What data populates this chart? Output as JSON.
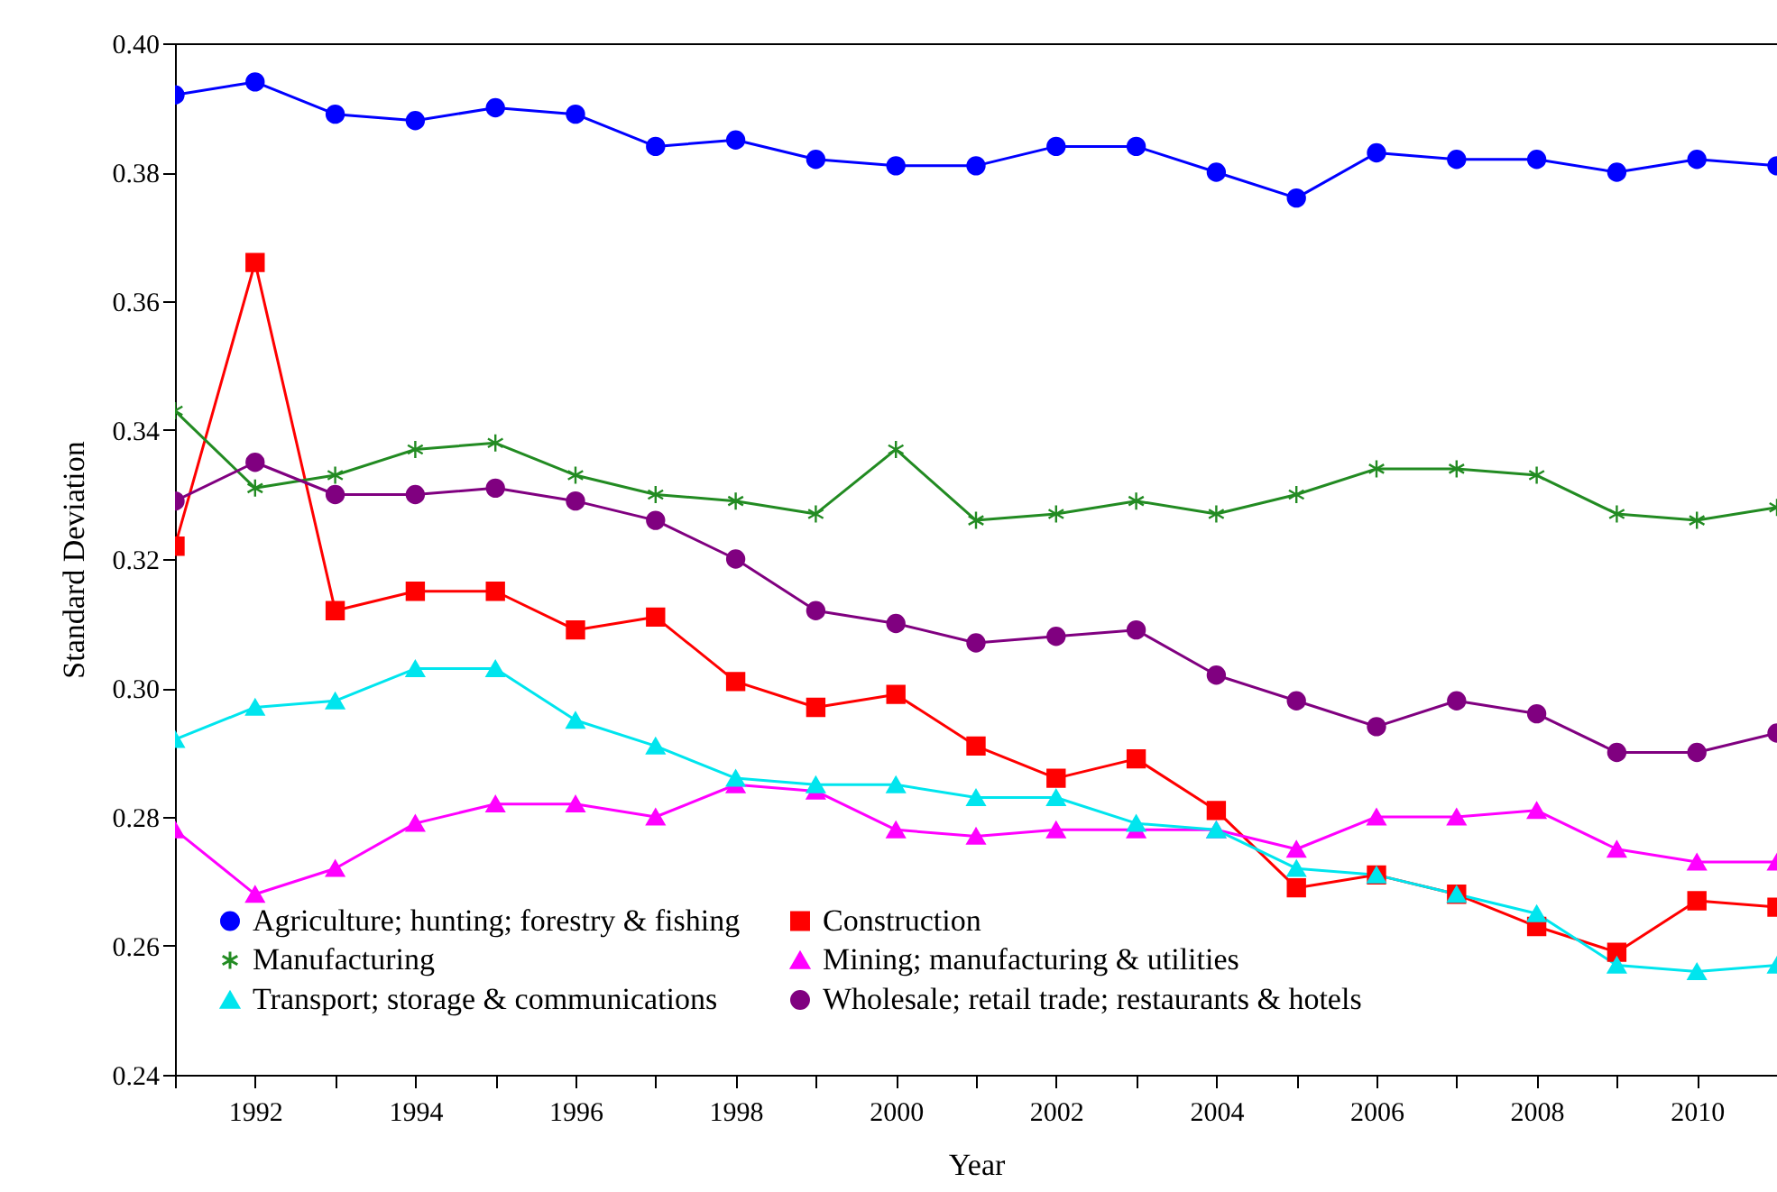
{
  "chart_data": {
    "type": "line",
    "xlabel": "Year",
    "ylabel": "Standard Deviation",
    "x": [
      1991,
      1992,
      1993,
      1994,
      1995,
      1996,
      1997,
      1998,
      1999,
      2000,
      2001,
      2002,
      2003,
      2004,
      2005,
      2006,
      2007,
      2008,
      2009,
      2010,
      2011
    ],
    "series": [
      {
        "name": "Agriculture; hunting; forestry & fishing",
        "color": "#0000ff",
        "marker": "circle",
        "values": [
          0.392,
          0.394,
          0.389,
          0.388,
          0.39,
          0.389,
          0.384,
          0.385,
          0.382,
          0.381,
          0.381,
          0.384,
          0.384,
          0.38,
          0.376,
          0.383,
          0.382,
          0.382,
          0.38,
          0.382,
          0.381
        ]
      },
      {
        "name": "Construction",
        "color": "#ff0000",
        "marker": "square",
        "values": [
          0.322,
          0.366,
          0.312,
          0.315,
          0.315,
          0.309,
          0.311,
          0.301,
          0.297,
          0.299,
          0.291,
          0.286,
          0.289,
          0.281,
          0.269,
          0.271,
          0.268,
          0.263,
          0.259,
          0.267,
          0.266
        ]
      },
      {
        "name": "Manufacturing",
        "color": "#228b22",
        "marker": "cross",
        "values": [
          0.343,
          0.331,
          0.333,
          0.337,
          0.338,
          0.333,
          0.33,
          0.329,
          0.327,
          0.337,
          0.326,
          0.327,
          0.329,
          0.327,
          0.33,
          0.334,
          0.334,
          0.333,
          0.327,
          0.326,
          0.328
        ]
      },
      {
        "name": "Mining; manufacturing & utilities",
        "color": "#ff00ff",
        "marker": "triangle",
        "values": [
          0.278,
          0.268,
          0.272,
          0.279,
          0.282,
          0.282,
          0.28,
          0.285,
          0.284,
          0.278,
          0.277,
          0.278,
          0.278,
          0.278,
          0.275,
          0.28,
          0.28,
          0.281,
          0.275,
          0.273,
          0.273
        ]
      },
      {
        "name": "Transport; storage & communications",
        "color": "#00e5ee",
        "marker": "triangle",
        "values": [
          0.292,
          0.297,
          0.298,
          0.303,
          0.303,
          0.295,
          0.291,
          0.286,
          0.285,
          0.285,
          0.283,
          0.283,
          0.279,
          0.278,
          0.272,
          0.271,
          0.268,
          0.265,
          0.257,
          0.256,
          0.257
        ]
      },
      {
        "name": "Wholesale; retail trade; restaurants & hotels",
        "color": "#800080",
        "marker": "circle",
        "values": [
          0.329,
          0.335,
          0.33,
          0.33,
          0.331,
          0.329,
          0.326,
          0.32,
          0.312,
          0.31,
          0.307,
          0.308,
          0.309,
          0.302,
          0.298,
          0.294,
          0.298,
          0.296,
          0.29,
          0.29,
          0.293
        ]
      }
    ],
    "xlim": [
      1991,
      2011
    ],
    "xticks": [
      {
        "value": 1991,
        "label": null
      },
      1992,
      {
        "value": 1993,
        "label": null
      },
      1994,
      {
        "value": 1995,
        "label": null
      },
      1996,
      {
        "value": 1997,
        "label": null
      },
      1998,
      {
        "value": 1999,
        "label": null
      },
      2000,
      {
        "value": 2001,
        "label": null
      },
      2002,
      {
        "value": 2003,
        "label": null
      },
      2004,
      {
        "value": 2005,
        "label": null
      },
      2006,
      {
        "value": 2007,
        "label": null
      },
      2008,
      {
        "value": 2009,
        "label": null
      },
      2010,
      {
        "value": 2011,
        "label": null
      }
    ],
    "ylim": [
      0.24,
      0.4
    ],
    "yticks": [
      0.24,
      0.26,
      0.28,
      {
        "value": 0.3,
        "label": "0.30"
      },
      0.32,
      0.34,
      0.36,
      0.38,
      {
        "value": 0.4,
        "label": "0.40"
      }
    ],
    "grid": false,
    "legend": "bottom"
  }
}
